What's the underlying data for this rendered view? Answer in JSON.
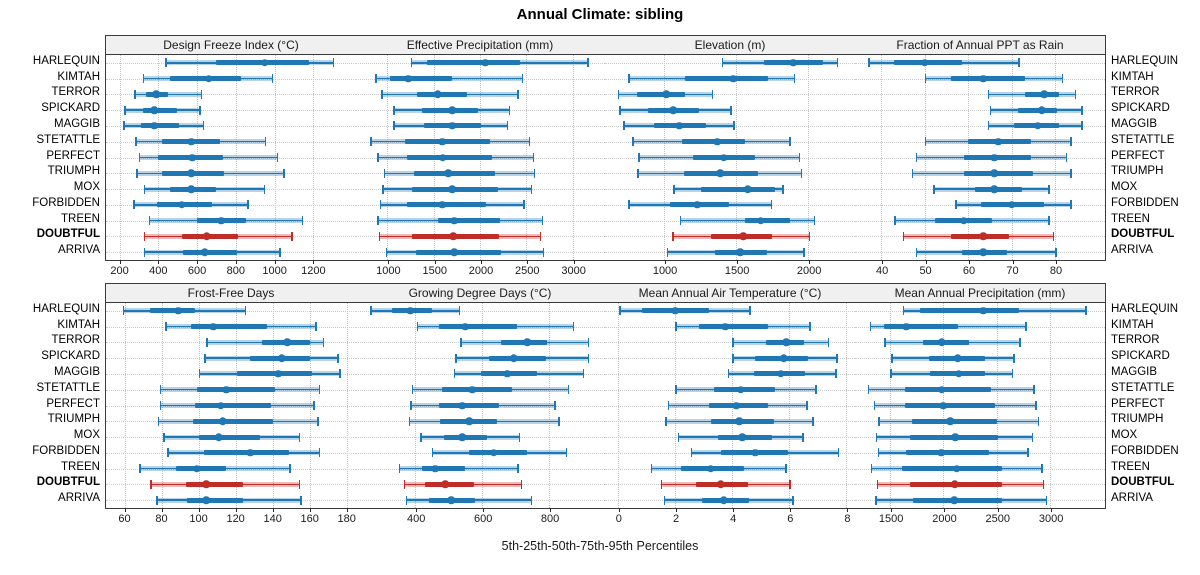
{
  "title": "Annual Climate: sibling",
  "caption": "5th-25th-50th-75th-95th Percentiles",
  "colors": {
    "series": "#1f77b4",
    "highlight_series": "#be2d28",
    "panel_header_bg": "#f0f0f0",
    "panel_border": "#3a3a3a",
    "grid": "#c8c8c8"
  },
  "chart_data": {
    "type": "dot-interval percentile chart (lattice, 2x4 panels)",
    "percentile_levels": [
      5,
      25,
      50,
      75,
      95
    ],
    "legend": "thin line with caps = 5th-95th, thick bar = 25th-75th, dot = median",
    "categories": [
      "HARLEQUIN",
      "KIMTAH",
      "TERROR",
      "SPICKARD",
      "MAGGIB",
      "STETATTLE",
      "PERFECT",
      "TRIUMPH",
      "MOX",
      "FORBIDDEN",
      "TREEN",
      "DOUBTFUL",
      "ARRIVA"
    ],
    "highlight_category": "DOUBTFUL",
    "panels": [
      {
        "title": "Design Freeze Index (°C)",
        "domain": [
          130,
          1420
        ],
        "ticks": [
          200,
          400,
          600,
          800,
          1000,
          1200
        ],
        "values": {
          "HARLEQUIN": [
            435,
            700,
            950,
            1175,
            1300
          ],
          "KIMTAH": [
            320,
            460,
            660,
            825,
            985
          ],
          "TERROR": [
            275,
            335,
            390,
            450,
            620
          ],
          "SPICKARD": [
            225,
            320,
            380,
            495,
            610
          ],
          "MAGGIB": [
            220,
            310,
            380,
            505,
            630
          ],
          "STETATTLE": [
            280,
            420,
            570,
            720,
            950
          ],
          "PERFECT": [
            300,
            400,
            575,
            735,
            1010
          ],
          "TRIUMPH": [
            285,
            420,
            570,
            740,
            1045
          ],
          "MOX": [
            325,
            460,
            570,
            700,
            945
          ],
          "FORBIDDEN": [
            270,
            395,
            520,
            675,
            860
          ],
          "TREEN": [
            350,
            600,
            725,
            850,
            1140
          ],
          "DOUBTFUL": [
            325,
            520,
            650,
            810,
            1085
          ],
          "ARRIVA": [
            325,
            525,
            640,
            805,
            1025
          ]
        }
      },
      {
        "title": "Effective Precipitation (mm)",
        "domain": [
          650,
          3350
        ],
        "ticks": [
          1000,
          1500,
          2000,
          2500,
          3000
        ],
        "values": {
          "HARLEQUIN": [
            1250,
            1430,
            2055,
            2430,
            3160
          ],
          "KIMTAH": [
            870,
            1030,
            1225,
            1700,
            2450
          ],
          "TERROR": [
            935,
            1320,
            1545,
            1860,
            2400
          ],
          "SPICKARD": [
            1065,
            1375,
            1700,
            1980,
            2310
          ],
          "MAGGIB": [
            1065,
            1390,
            1700,
            2010,
            2290
          ],
          "STETATTLE": [
            815,
            1195,
            1590,
            2110,
            2525
          ],
          "PERFECT": [
            890,
            1215,
            1600,
            2130,
            2570
          ],
          "TRIUMPH": [
            960,
            1290,
            1655,
            2160,
            2580
          ],
          "MOX": [
            945,
            1270,
            1700,
            2190,
            2550
          ],
          "FORBIDDEN": [
            915,
            1215,
            1590,
            2065,
            2465
          ],
          "TREEN": [
            890,
            1545,
            1720,
            2215,
            2665
          ],
          "DOUBTFUL": [
            905,
            1265,
            1710,
            2205,
            2645
          ],
          "ARRIVA": [
            980,
            1310,
            1720,
            2225,
            2680
          ]
        }
      },
      {
        "title": "Elevation (m)",
        "domain": [
          590,
          2325
        ],
        "ticks": [
          1000,
          1500,
          2000
        ],
        "values": {
          "HARLEQUIN": [
            1400,
            1690,
            1895,
            2105,
            2200
          ],
          "KIMTAH": [
            750,
            1145,
            1480,
            1720,
            1900
          ],
          "TERROR": [
            680,
            810,
            1015,
            1145,
            1330
          ],
          "SPICKARD": [
            690,
            890,
            1065,
            1245,
            1460
          ],
          "MAGGIB": [
            715,
            930,
            1105,
            1290,
            1480
          ],
          "STETATTLE": [
            780,
            1125,
            1370,
            1560,
            1870
          ],
          "PERFECT": [
            820,
            1200,
            1415,
            1630,
            1935
          ],
          "TRIUMPH": [
            815,
            1140,
            1390,
            1655,
            1950
          ],
          "MOX": [
            1065,
            1255,
            1580,
            1770,
            1820
          ],
          "FORBIDDEN": [
            750,
            1040,
            1230,
            1450,
            1740
          ],
          "TREEN": [
            1110,
            1560,
            1670,
            1875,
            2040
          ],
          "DOUBTFUL": [
            1055,
            1325,
            1550,
            1750,
            2005
          ],
          "ARRIVA": [
            1020,
            1355,
            1530,
            1715,
            1965
          ]
        }
      },
      {
        "title": "Fraction of Annual PPT as Rain",
        "domain": [
          34,
          91.5
        ],
        "ticks": [
          40,
          50,
          60,
          70,
          80
        ],
        "values": {
          "HARLEQUIN": [
            37,
            43,
            50,
            58.5,
            71.5
          ],
          "KIMTAH": [
            50,
            56,
            63.5,
            73,
            81.5
          ],
          "TERROR": [
            64.5,
            73,
            77.5,
            81,
            84.5
          ],
          "SPICKARD": [
            65,
            71.5,
            77,
            80.5,
            86
          ],
          "MAGGIB": [
            64.5,
            70.5,
            76,
            81,
            86
          ],
          "STETATTLE": [
            50,
            60,
            67,
            74.5,
            83.5
          ],
          "PERFECT": [
            48,
            59,
            66,
            74.5,
            82.5
          ],
          "TRIUMPH": [
            47,
            59,
            66,
            75,
            83.5
          ],
          "MOX": [
            52,
            61.5,
            66,
            72.5,
            78.5
          ],
          "FORBIDDEN": [
            57,
            63,
            70,
            77.5,
            83.5
          ],
          "TREEN": [
            43,
            52.5,
            59,
            65.5,
            78.5
          ],
          "DOUBTFUL": [
            45,
            56,
            63.5,
            69.5,
            79.5
          ],
          "ARRIVA": [
            48,
            58.5,
            63.5,
            69,
            80
          ]
        }
      },
      {
        "title": "Frost-Free Days",
        "domain": [
          50,
          185
        ],
        "ticks": [
          60,
          80,
          100,
          120,
          140,
          160,
          180
        ],
        "values": {
          "HARLEQUIN": [
            59,
            74,
            89,
            98,
            125
          ],
          "KIMTAH": [
            82,
            96,
            108,
            137,
            163
          ],
          "TERROR": [
            104,
            134,
            148,
            160,
            167
          ],
          "SPICKARD": [
            103,
            128,
            145,
            160,
            175
          ],
          "MAGGIB": [
            100,
            121,
            143,
            161,
            176
          ],
          "STETATTLE": [
            79,
            99,
            115,
            141,
            165
          ],
          "PERFECT": [
            79,
            98,
            112,
            139,
            162
          ],
          "TRIUMPH": [
            78,
            97,
            113,
            140,
            164
          ],
          "MOX": [
            81,
            100,
            111,
            133,
            154
          ],
          "FORBIDDEN": [
            83,
            103,
            128,
            149,
            165
          ],
          "TREEN": [
            68,
            88,
            99,
            115,
            149
          ],
          "DOUBTFUL": [
            74,
            93,
            104,
            124,
            154
          ],
          "ARRIVA": [
            77,
            94,
            104,
            124,
            155
          ]
        }
      },
      {
        "title": "Growing Degree Days (°C)",
        "domain": [
          220,
          967
        ],
        "ticks": [
          400,
          600,
          800
        ],
        "values": {
          "HARLEQUIN": [
            265,
            330,
            385,
            450,
            530
          ],
          "KIMTAH": [
            405,
            470,
            550,
            705,
            870
          ],
          "TERROR": [
            535,
            655,
            735,
            795,
            915
          ],
          "SPICKARD": [
            520,
            620,
            695,
            790,
            915
          ],
          "MAGGIB": [
            515,
            595,
            675,
            765,
            900
          ],
          "STETATTLE": [
            390,
            480,
            570,
            690,
            855
          ],
          "PERFECT": [
            385,
            470,
            540,
            650,
            815
          ],
          "TRIUMPH": [
            380,
            473,
            562,
            644,
            828
          ],
          "MOX": [
            415,
            485,
            540,
            615,
            710
          ],
          "FORBIDDEN": [
            450,
            560,
            635,
            735,
            850
          ],
          "TREEN": [
            350,
            420,
            460,
            550,
            705
          ],
          "DOUBTFUL": [
            365,
            428,
            490,
            577,
            715
          ],
          "ARRIVA": [
            372,
            442,
            507,
            580,
            745
          ]
        }
      },
      {
        "title": "Mean Annual Air Temperature (°C)",
        "domain": [
          -0.45,
          8.3
        ],
        "ticks": [
          0,
          2,
          4,
          6,
          8
        ],
        "values": {
          "HARLEQUIN": [
            0.05,
            0.85,
            2.0,
            3.2,
            4.6
          ],
          "KIMTAH": [
            2.0,
            2.85,
            3.75,
            5.25,
            6.7
          ],
          "TERROR": [
            4.0,
            5.2,
            5.9,
            6.5,
            7.35
          ],
          "SPICKARD": [
            4.0,
            4.8,
            5.8,
            6.65,
            7.65
          ],
          "MAGGIB": [
            3.85,
            4.75,
            5.7,
            6.55,
            7.6
          ],
          "STETATTLE": [
            2.0,
            3.35,
            4.3,
            5.5,
            6.9
          ],
          "PERFECT": [
            1.75,
            3.2,
            4.15,
            5.25,
            6.6
          ],
          "TRIUMPH": [
            1.65,
            3.25,
            4.25,
            5.45,
            6.8
          ],
          "MOX": [
            2.1,
            3.5,
            4.35,
            5.4,
            6.45
          ],
          "FORBIDDEN": [
            2.55,
            3.6,
            4.8,
            5.95,
            7.7
          ],
          "TREEN": [
            1.15,
            2.2,
            3.25,
            4.4,
            5.85
          ],
          "DOUBTFUL": [
            1.5,
            2.75,
            3.6,
            4.55,
            6.0
          ],
          "ARRIVA": [
            1.6,
            2.95,
            3.7,
            4.6,
            6.1
          ]
        }
      },
      {
        "title": "Mean Annual Precipitation (mm)",
        "domain": [
          1170,
          3515
        ],
        "ticks": [
          1500,
          2000,
          2500,
          3000
        ],
        "values": {
          "HARLEQUIN": [
            1620,
            1780,
            2375,
            2705,
            3330
          ],
          "KIMTAH": [
            1310,
            1445,
            1650,
            2135,
            2765
          ],
          "TERROR": [
            1445,
            1805,
            1985,
            2235,
            2710
          ],
          "SPICKARD": [
            1510,
            1865,
            2135,
            2390,
            2655
          ],
          "MAGGIB": [
            1500,
            1875,
            2145,
            2385,
            2640
          ],
          "STETATTLE": [
            1290,
            1635,
            1985,
            2445,
            2840
          ],
          "PERFECT": [
            1345,
            1635,
            2000,
            2485,
            2860
          ],
          "TRIUMPH": [
            1390,
            1700,
            2065,
            2500,
            2885
          ],
          "MOX": [
            1365,
            1690,
            2110,
            2510,
            2830
          ],
          "FORBIDDEN": [
            1385,
            1650,
            1980,
            2430,
            2785
          ],
          "TREEN": [
            1320,
            1610,
            2125,
            2545,
            2915
          ],
          "DOUBTFUL": [
            1375,
            1690,
            2105,
            2550,
            2930
          ],
          "ARRIVA": [
            1360,
            1710,
            2100,
            2550,
            2960
          ]
        }
      }
    ]
  }
}
